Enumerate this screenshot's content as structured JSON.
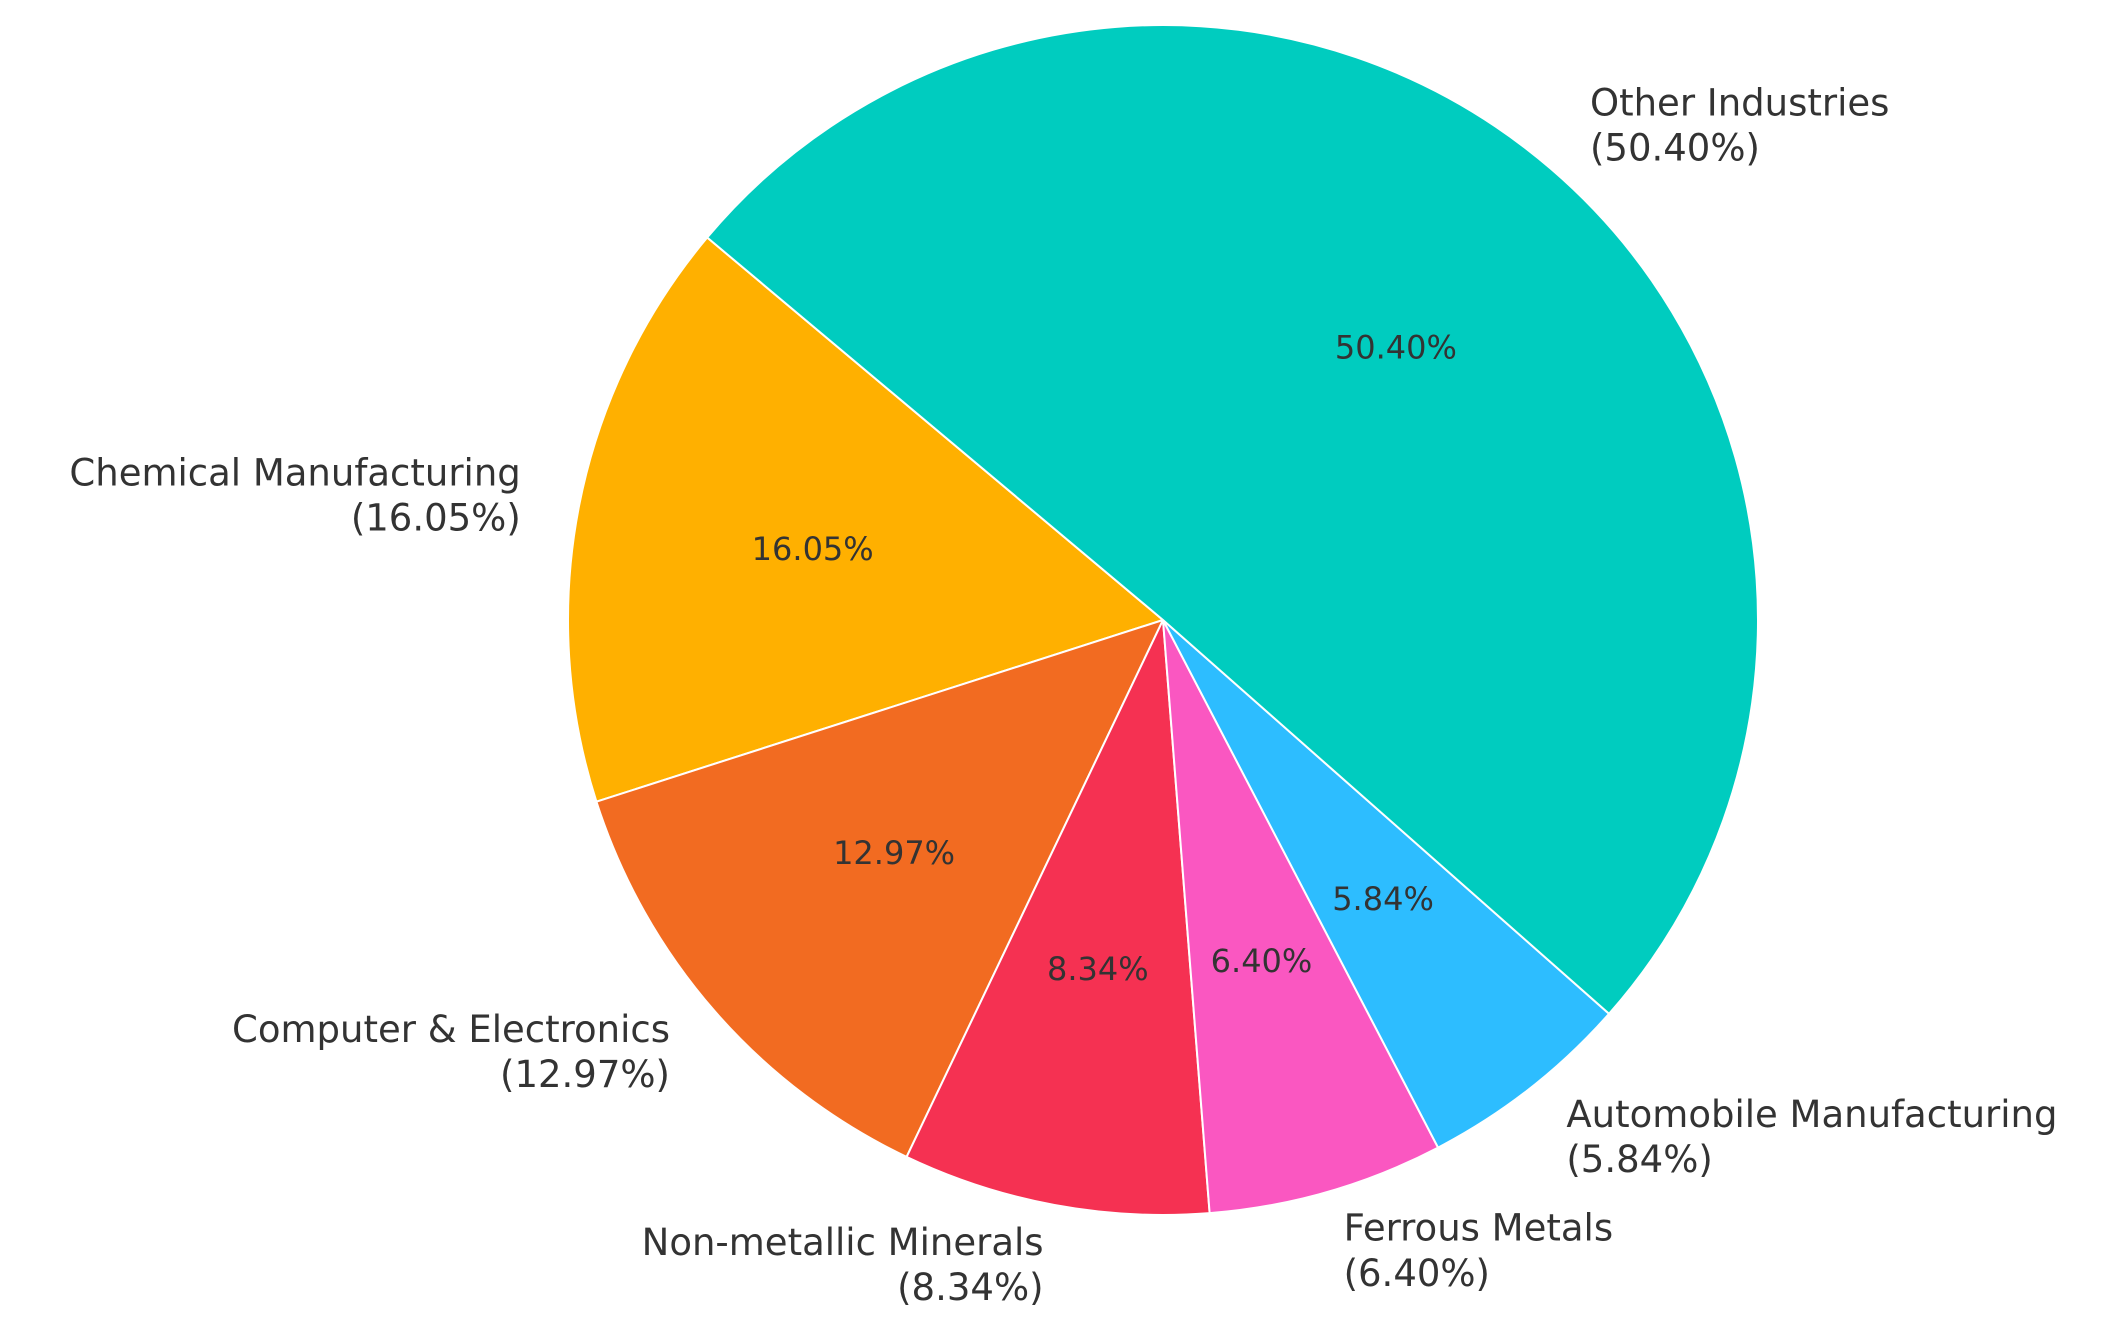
{
  "chart_data": {
    "type": "pie",
    "categories": [
      "Chemical Manufacturing",
      "Computer & Electronics",
      "Non-metallic Minerals",
      "Ferrous Metals",
      "Automobile Manufacturing",
      "Other Industries"
    ],
    "values": [
      16.05,
      12.97,
      8.34,
      6.4,
      5.84,
      50.4
    ],
    "value_labels": [
      "16.05%",
      "12.97%",
      "8.34%",
      "6.40%",
      "5.84%",
      "50.40%"
    ],
    "outer_value_labels": [
      "(16.05%)",
      "(12.97%)",
      "(8.34%)",
      "(6.40%)",
      "(5.84%)",
      "(50.40%)"
    ],
    "colors": [
      "#FFB000",
      "#F26B21",
      "#F53152",
      "#FA57C1",
      "#2DBDFF",
      "#00CCBF"
    ]
  }
}
